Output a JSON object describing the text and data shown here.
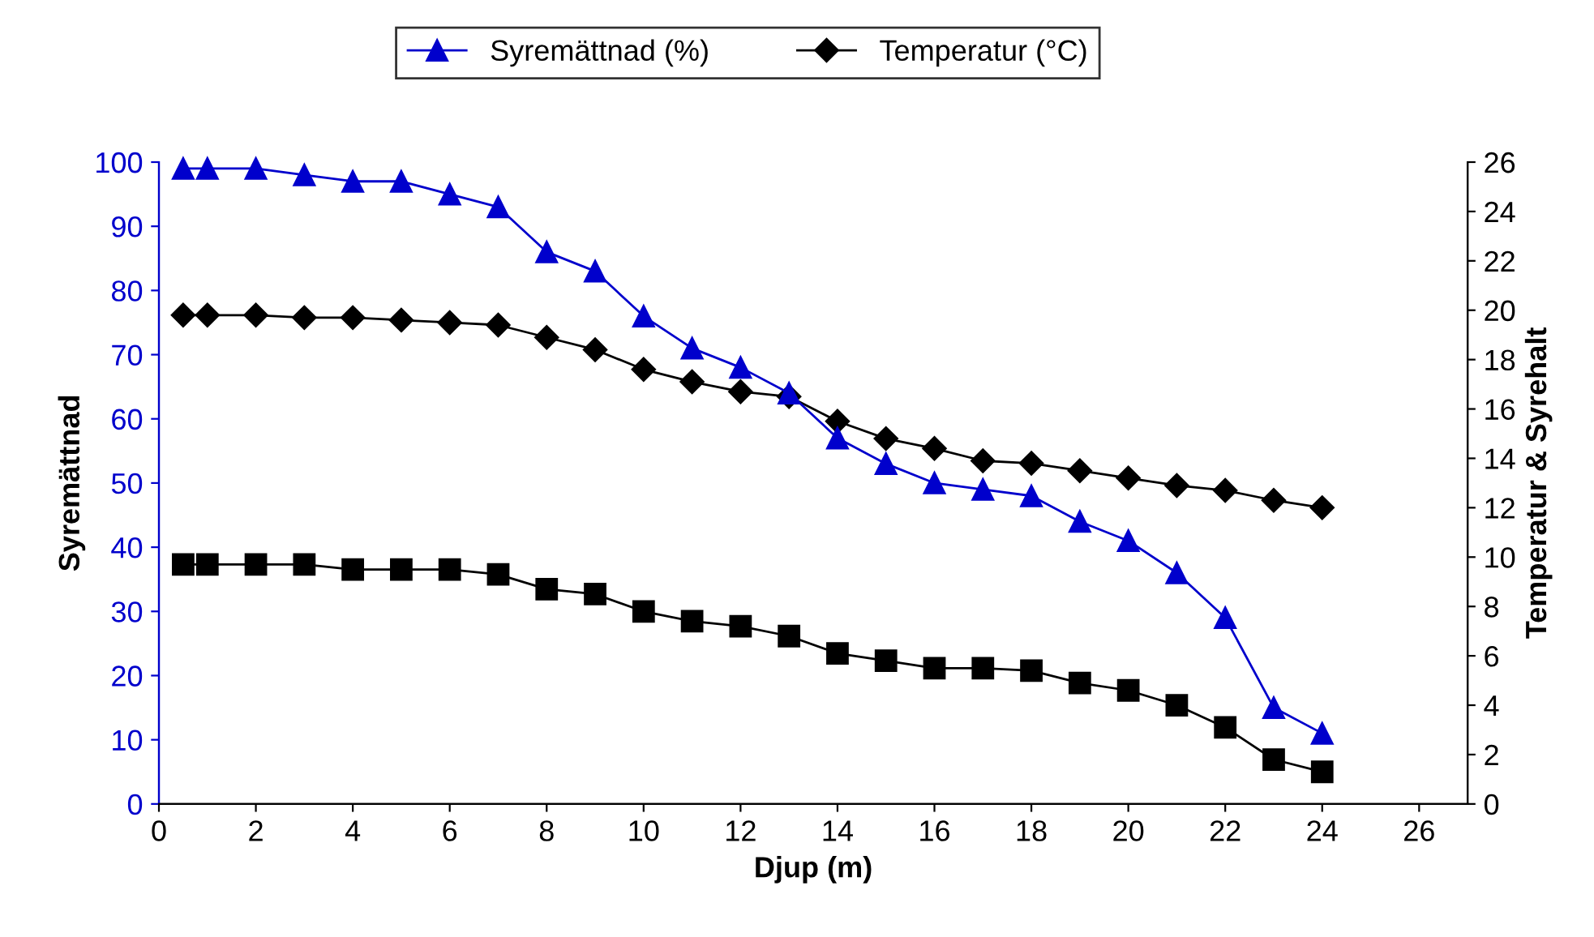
{
  "chart_data": {
    "type": "line",
    "xlabel": "Djup (m)",
    "ylabel": "Syremättnad",
    "y2label": "Temperatur & Syrehalt",
    "x": [
      0.5,
      1,
      2,
      3,
      4,
      5,
      6,
      7,
      8,
      9,
      10,
      11,
      12,
      13,
      14,
      15,
      16,
      17,
      18,
      19,
      20,
      21,
      22,
      23,
      24
    ],
    "series": [
      {
        "name": "Syremättnad (%)",
        "color": "#0000cc",
        "marker": "triangle",
        "values": [
          99,
          99,
          99,
          98,
          97,
          97,
          95,
          93,
          86,
          83,
          76,
          71,
          68,
          64,
          57,
          53,
          50,
          49,
          48,
          44,
          41,
          36,
          29,
          15,
          11
        ]
      },
      {
        "name": "Temperatur (°C)",
        "color": "#000000",
        "marker": "diamond",
        "axis": "y2",
        "values": [
          19.8,
          19.8,
          19.8,
          19.7,
          19.7,
          19.6,
          19.5,
          19.4,
          18.9,
          18.4,
          17.6,
          17.1,
          16.7,
          16.5,
          15.5,
          14.8,
          14.4,
          13.9,
          13.8,
          13.5,
          13.2,
          12.9,
          12.7,
          12.3,
          12.0
        ]
      },
      {
        "color": "#000000",
        "marker": "square",
        "axis": "y2",
        "values": [
          9.7,
          9.7,
          9.7,
          9.7,
          9.5,
          9.5,
          9.5,
          9.3,
          8.7,
          8.5,
          7.8,
          7.4,
          7.2,
          6.8,
          6.1,
          5.8,
          5.5,
          5.5,
          5.4,
          4.9,
          4.6,
          4.0,
          3.1,
          1.8,
          1.3
        ]
      }
    ],
    "xlim": [
      0,
      27
    ],
    "xticks": [
      0,
      2,
      4,
      6,
      8,
      10,
      12,
      14,
      16,
      18,
      20,
      22,
      24,
      26
    ],
    "ylim": [
      0,
      100
    ],
    "yticks": [
      0,
      10,
      20,
      30,
      40,
      50,
      60,
      70,
      80,
      90,
      100
    ],
    "y2lim": [
      0,
      26
    ],
    "y2ticks": [
      0,
      2,
      4,
      6,
      8,
      10,
      12,
      14,
      16,
      18,
      20,
      22,
      24,
      26
    ],
    "grid": false,
    "legend": "top",
    "line_style": "solid"
  }
}
